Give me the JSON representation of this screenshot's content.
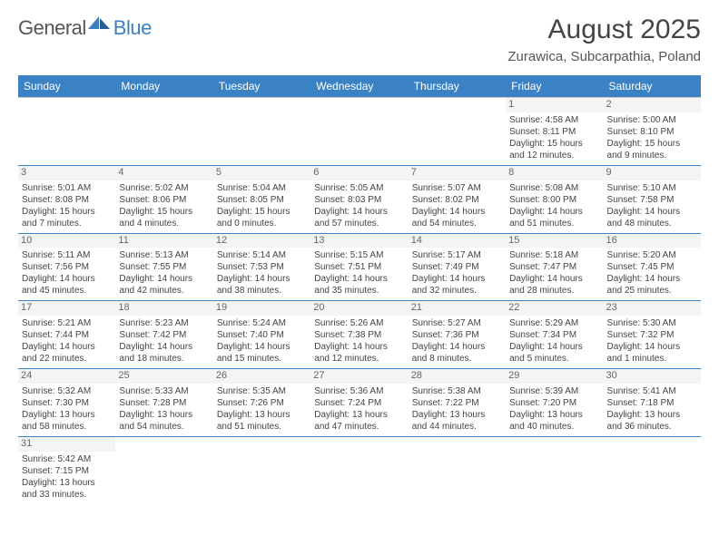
{
  "logo": {
    "general": "General",
    "blue": "Blue"
  },
  "title": "August 2025",
  "location": "Zurawica, Subcarpathia, Poland",
  "header_bg": "#3b82c4",
  "header_fg": "#ffffff",
  "row_divider": "#3b82c4",
  "cell_border": "#cccccc",
  "daynum_bg": "#f4f4f4",
  "weekdays": [
    "Sunday",
    "Monday",
    "Tuesday",
    "Wednesday",
    "Thursday",
    "Friday",
    "Saturday"
  ],
  "weeks": [
    [
      null,
      null,
      null,
      null,
      null,
      {
        "n": "1",
        "sr": "4:58 AM",
        "ss": "8:11 PM",
        "dh": "15",
        "dm": "12"
      },
      {
        "n": "2",
        "sr": "5:00 AM",
        "ss": "8:10 PM",
        "dh": "15",
        "dm": "9"
      }
    ],
    [
      {
        "n": "3",
        "sr": "5:01 AM",
        "ss": "8:08 PM",
        "dh": "15",
        "dm": "7"
      },
      {
        "n": "4",
        "sr": "5:02 AM",
        "ss": "8:06 PM",
        "dh": "15",
        "dm": "4"
      },
      {
        "n": "5",
        "sr": "5:04 AM",
        "ss": "8:05 PM",
        "dh": "15",
        "dm": "0"
      },
      {
        "n": "6",
        "sr": "5:05 AM",
        "ss": "8:03 PM",
        "dh": "14",
        "dm": "57"
      },
      {
        "n": "7",
        "sr": "5:07 AM",
        "ss": "8:02 PM",
        "dh": "14",
        "dm": "54"
      },
      {
        "n": "8",
        "sr": "5:08 AM",
        "ss": "8:00 PM",
        "dh": "14",
        "dm": "51"
      },
      {
        "n": "9",
        "sr": "5:10 AM",
        "ss": "7:58 PM",
        "dh": "14",
        "dm": "48"
      }
    ],
    [
      {
        "n": "10",
        "sr": "5:11 AM",
        "ss": "7:56 PM",
        "dh": "14",
        "dm": "45"
      },
      {
        "n": "11",
        "sr": "5:13 AM",
        "ss": "7:55 PM",
        "dh": "14",
        "dm": "42"
      },
      {
        "n": "12",
        "sr": "5:14 AM",
        "ss": "7:53 PM",
        "dh": "14",
        "dm": "38"
      },
      {
        "n": "13",
        "sr": "5:15 AM",
        "ss": "7:51 PM",
        "dh": "14",
        "dm": "35"
      },
      {
        "n": "14",
        "sr": "5:17 AM",
        "ss": "7:49 PM",
        "dh": "14",
        "dm": "32"
      },
      {
        "n": "15",
        "sr": "5:18 AM",
        "ss": "7:47 PM",
        "dh": "14",
        "dm": "28"
      },
      {
        "n": "16",
        "sr": "5:20 AM",
        "ss": "7:45 PM",
        "dh": "14",
        "dm": "25"
      }
    ],
    [
      {
        "n": "17",
        "sr": "5:21 AM",
        "ss": "7:44 PM",
        "dh": "14",
        "dm": "22"
      },
      {
        "n": "18",
        "sr": "5:23 AM",
        "ss": "7:42 PM",
        "dh": "14",
        "dm": "18"
      },
      {
        "n": "19",
        "sr": "5:24 AM",
        "ss": "7:40 PM",
        "dh": "14",
        "dm": "15"
      },
      {
        "n": "20",
        "sr": "5:26 AM",
        "ss": "7:38 PM",
        "dh": "14",
        "dm": "12"
      },
      {
        "n": "21",
        "sr": "5:27 AM",
        "ss": "7:36 PM",
        "dh": "14",
        "dm": "8"
      },
      {
        "n": "22",
        "sr": "5:29 AM",
        "ss": "7:34 PM",
        "dh": "14",
        "dm": "5"
      },
      {
        "n": "23",
        "sr": "5:30 AM",
        "ss": "7:32 PM",
        "dh": "14",
        "dm": "1"
      }
    ],
    [
      {
        "n": "24",
        "sr": "5:32 AM",
        "ss": "7:30 PM",
        "dh": "13",
        "dm": "58"
      },
      {
        "n": "25",
        "sr": "5:33 AM",
        "ss": "7:28 PM",
        "dh": "13",
        "dm": "54"
      },
      {
        "n": "26",
        "sr": "5:35 AM",
        "ss": "7:26 PM",
        "dh": "13",
        "dm": "51"
      },
      {
        "n": "27",
        "sr": "5:36 AM",
        "ss": "7:24 PM",
        "dh": "13",
        "dm": "47"
      },
      {
        "n": "28",
        "sr": "5:38 AM",
        "ss": "7:22 PM",
        "dh": "13",
        "dm": "44"
      },
      {
        "n": "29",
        "sr": "5:39 AM",
        "ss": "7:20 PM",
        "dh": "13",
        "dm": "40"
      },
      {
        "n": "30",
        "sr": "5:41 AM",
        "ss": "7:18 PM",
        "dh": "13",
        "dm": "36"
      }
    ],
    [
      {
        "n": "31",
        "sr": "5:42 AM",
        "ss": "7:15 PM",
        "dh": "13",
        "dm": "33"
      },
      null,
      null,
      null,
      null,
      null,
      null
    ]
  ],
  "labels": {
    "sunrise": "Sunrise:",
    "sunset": "Sunset:",
    "daylight": "Daylight:",
    "hours": "hours",
    "and": "and",
    "minutes": "minutes."
  }
}
